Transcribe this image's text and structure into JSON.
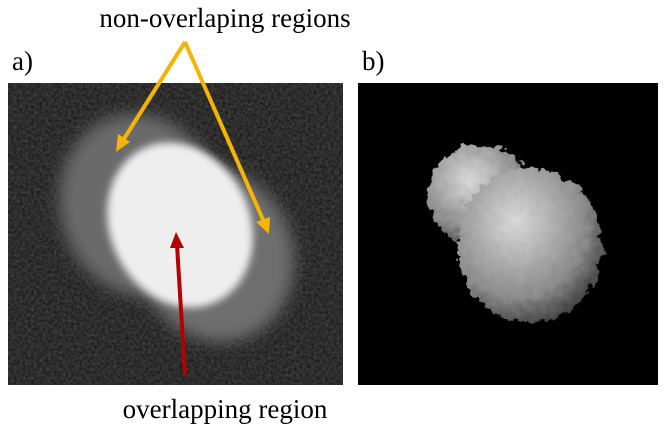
{
  "annotations": {
    "top": "non-overlaping regions",
    "bottom": "overlapping region"
  },
  "panels": [
    {
      "label": "a)"
    },
    {
      "label": "b)"
    }
  ]
}
